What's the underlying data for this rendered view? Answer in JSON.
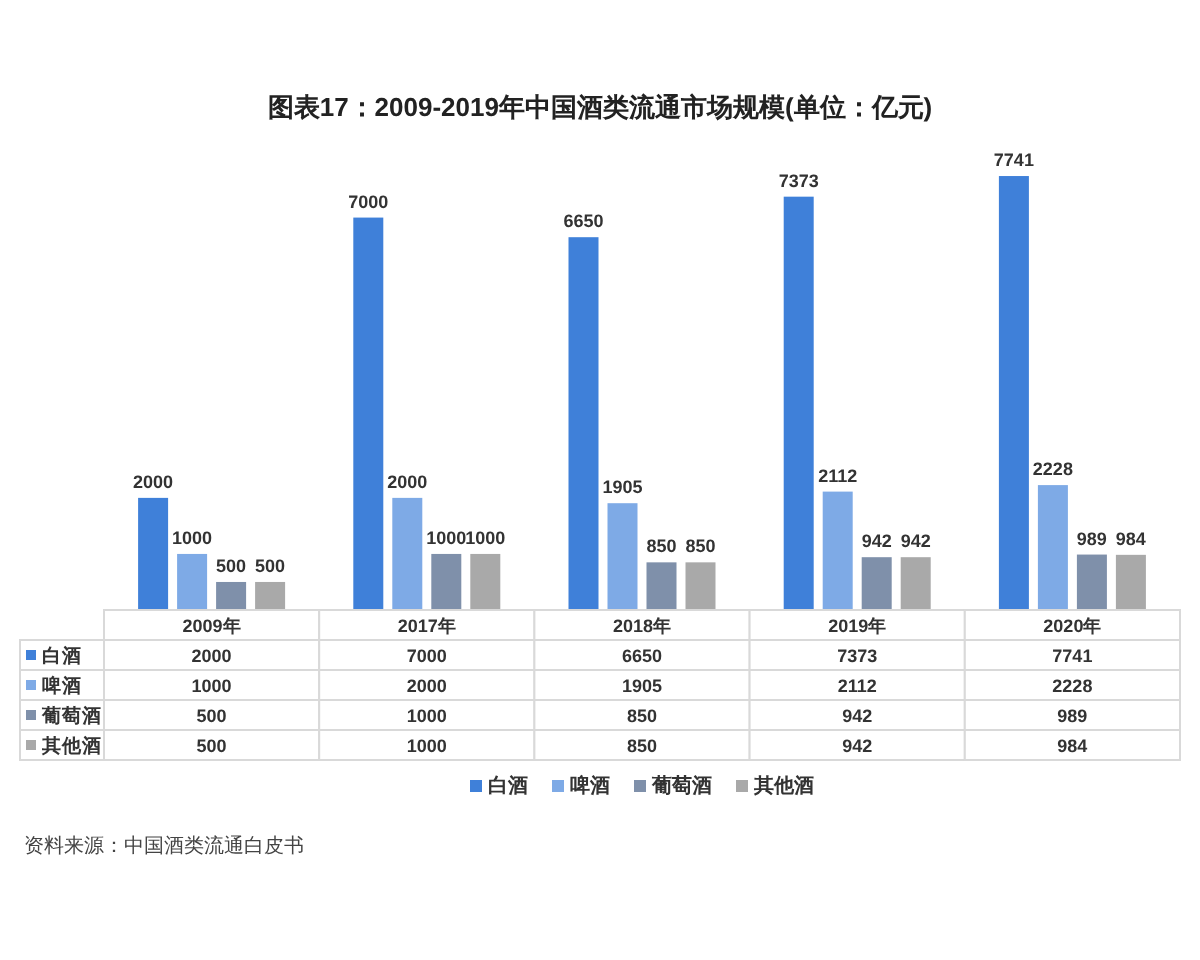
{
  "chart_data": [
    {
      "type": "bar",
      "title": "图表17：2009-2019年中国酒类流通市场规模(单位：亿元)",
      "categories": [
        null,
        null,
        null,
        null,
        null
      ],
      "series": [
        {
          "name": "白酒",
          "color": "#3f80d9",
          "values": [
            2000,
            7000,
            6650,
            7373,
            7741
          ],
          "value_labels": [
            "2000",
            "7000",
            "6650",
            "7373",
            "7741"
          ]
        },
        {
          "name": "啤酒",
          "color": "#7eaae6",
          "values": [
            1000,
            2000,
            1905,
            2112,
            2228
          ],
          "value_labels": [
            "1000",
            "2000",
            "1905",
            "2112",
            "2228"
          ]
        },
        {
          "name": "葡萄酒",
          "color": "#7f90aa",
          "values": [
            500,
            1000,
            850,
            942,
            989
          ],
          "value_labels": [
            "500",
            "1000",
            "850",
            "942",
            "989"
          ]
        },
        {
          "name": "其他酒",
          "color": "#a9a9a9",
          "values": [
            500,
            1000,
            850,
            942,
            984
          ],
          "value_labels": [
            "500",
            "1000",
            "850",
            "942",
            "984"
          ]
        }
      ],
      "legend": "bottom",
      "annotations": [
        "资料来源：中国酒类流通白皮书"
      ]
    },
    {
      "type": "heatmap",
      "categories": [
        "2009年",
        "2017年",
        "2018年",
        "2019年",
        "2020年"
      ],
      "y_categories": [
        "白酒",
        "啤酒",
        "葡萄酒",
        "其他酒"
      ],
      "cells": [
        [
          2000,
          7000,
          6650,
          7373,
          7741
        ],
        [
          1000,
          2000,
          1905,
          2112,
          2228
        ],
        [
          500,
          1000,
          850,
          942,
          989
        ],
        [
          500,
          1000,
          850,
          942,
          984
        ]
      ],
      "data_labels": true
    }
  ]
}
